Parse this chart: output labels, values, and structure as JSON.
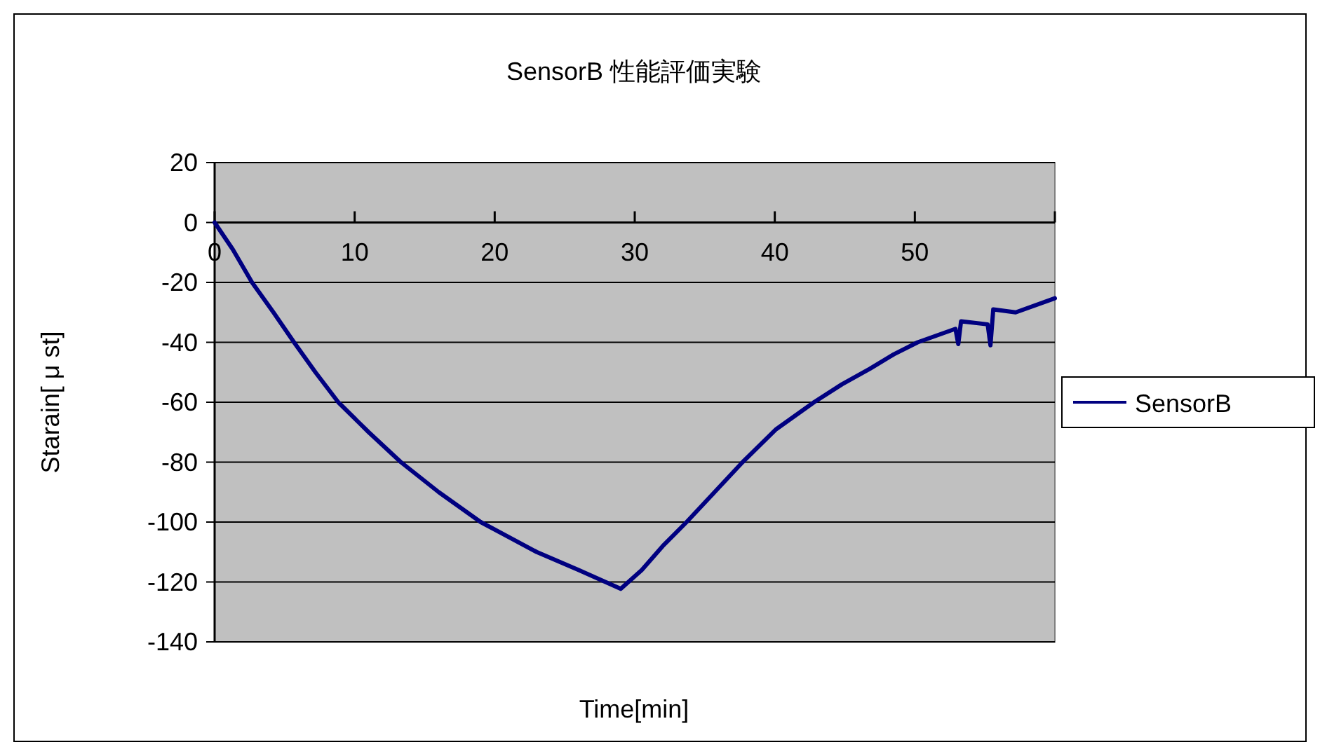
{
  "chart_data": {
    "type": "line",
    "title": "SensorB 性能評価実験",
    "xlabel": "Time[min]",
    "ylabel": "Starain[ μ st]",
    "xlim": [
      0,
      60
    ],
    "ylim": [
      -140,
      20
    ],
    "xticks": [
      0,
      10,
      20,
      30,
      40,
      50,
      {
        "value": 60,
        "label": null
      }
    ],
    "yticks": [
      -140,
      -120,
      -100,
      -80,
      -60,
      -40,
      -20,
      0,
      20
    ],
    "grid": "y",
    "legend": "right",
    "x": [
      0,
      1.3,
      2.67,
      4.2,
      5.67,
      7.2,
      8.83,
      11,
      13.3,
      16,
      19,
      23,
      26,
      29,
      30.5,
      32,
      33.7,
      35.7,
      37.7,
      40.1,
      42.8,
      44.8,
      46.8,
      48.5,
      50.2,
      52.9,
      53.1,
      53.3,
      55.2,
      55.4,
      55.6,
      57.2,
      60
    ],
    "series": [
      {
        "name": "SensorB",
        "color": "#000080",
        "values": [
          0,
          -9,
          -20,
          -30,
          -40,
          -50,
          -60,
          -70,
          -80,
          -90,
          -100,
          -110,
          -116,
          -122.3,
          -116,
          -108,
          -100,
          -90,
          -80,
          -69,
          -60,
          -54,
          -48.8,
          -44,
          -40,
          -35.5,
          -40.6,
          -33,
          -34,
          -41,
          -29,
          -30,
          -25.3
        ]
      }
    ]
  }
}
